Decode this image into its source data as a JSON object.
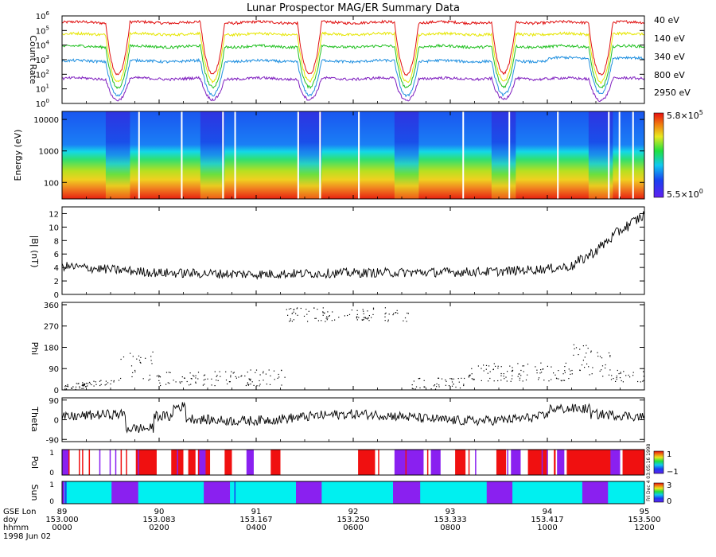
{
  "title": "Lunar Prospector MAG/ER Summary Data",
  "chart_data": [
    {
      "type": "line",
      "name": "count-rate",
      "ylabel": "Count Rate",
      "yscale": "log",
      "ylim": [
        1,
        1000000
      ],
      "yticks": [
        {
          "b": "10",
          "e": "0",
          "v": 1
        },
        {
          "b": "10",
          "e": "1",
          "v": 10
        },
        {
          "b": "10",
          "e": "2",
          "v": 100
        },
        {
          "b": "10",
          "e": "3",
          "v": 1000
        },
        {
          "b": "10",
          "e": "4",
          "v": 10000
        },
        {
          "b": "10",
          "e": "5",
          "v": 100000
        },
        {
          "b": "10",
          "e": "6",
          "v": 1000000
        }
      ],
      "series": [
        {
          "name": "40 eV",
          "color": "#e01010",
          "base_log": 5.55,
          "dip_log": 2.0
        },
        {
          "name": "140 eV",
          "color": "#e6e600",
          "base_log": 4.75,
          "dip_log": 1.5
        },
        {
          "name": "340 eV",
          "color": "#20c020",
          "base_log": 3.9,
          "dip_log": 1.1
        },
        {
          "name": "800 eV",
          "color": "#2090e0",
          "base_log": 2.9,
          "dip_log": 0.55
        },
        {
          "name": "2950 eV",
          "color": "#8020c0",
          "base_log": 1.7,
          "dip_log": 0.25
        }
      ],
      "xrange_hours": [
        0,
        12
      ],
      "night_passes_hours": [
        [
          0.9,
          1.4
        ],
        [
          2.85,
          3.35
        ],
        [
          4.85,
          5.35
        ],
        [
          6.85,
          7.35
        ],
        [
          8.85,
          9.35
        ],
        [
          10.85,
          11.35
        ]
      ]
    },
    {
      "type": "heatmap",
      "name": "energy-spectrogram",
      "ylabel": "Energy (eV)",
      "yscale": "log",
      "ylim": [
        30,
        18000
      ],
      "yticks": [
        {
          "label": "100",
          "v": 100
        },
        {
          "label": "1000",
          "v": 1000
        },
        {
          "label": "10000",
          "v": 10000
        }
      ],
      "colorbar": {
        "max_b": "5.8×10",
        "max_e": "5",
        "min_b": "5.5×10",
        "min_e": "0"
      },
      "data_gaps_hours": [
        1.57,
        2.45,
        3.3,
        3.55,
        4.85,
        5.3,
        6.1,
        8.25,
        9.2,
        10.2,
        11.25,
        11.47,
        11.75
      ]
    },
    {
      "type": "line",
      "name": "b-magnitude",
      "ylabel": "|B| (nT)",
      "ylim": [
        0,
        13
      ],
      "yticks": [
        0,
        2,
        4,
        6,
        8,
        10,
        12
      ],
      "trend_hours": [
        0,
        2,
        4,
        6,
        8,
        9,
        10,
        10.5,
        11,
        11.5,
        12
      ],
      "trend_values": [
        4.2,
        3.2,
        3.0,
        3.2,
        3.3,
        3.4,
        3.8,
        4.2,
        6.5,
        9.5,
        11.8
      ]
    },
    {
      "type": "scatter",
      "name": "phi",
      "ylabel": "Phi",
      "ylim": [
        0,
        370
      ],
      "yticks": [
        0,
        90,
        180,
        270,
        360
      ]
    },
    {
      "type": "line",
      "name": "theta",
      "ylabel": "Theta",
      "ylim": [
        -100,
        100
      ],
      "yticks": [
        -90,
        0,
        90
      ]
    },
    {
      "type": "bar",
      "name": "pol",
      "ylabel": "Pol",
      "colorbar_ticks": [
        "1",
        "−1"
      ],
      "positive_hours": [
        [
          1.52,
          1.95
        ],
        [
          2.25,
          2.5
        ],
        [
          2.6,
          2.75
        ],
        [
          2.9,
          3.05
        ],
        [
          3.35,
          3.5
        ],
        [
          4.3,
          4.5
        ],
        [
          6.1,
          6.45
        ],
        [
          8.1,
          8.3
        ],
        [
          8.95,
          9.15
        ],
        [
          9.6,
          10.0
        ],
        [
          10.4,
          11.45
        ],
        [
          11.55,
          12.0
        ]
      ],
      "negative_hours": [
        [
          0.0,
          0.15
        ],
        [
          2.8,
          2.98
        ],
        [
          3.8,
          3.95
        ],
        [
          6.85,
          7.45
        ],
        [
          7.6,
          7.8
        ],
        [
          9.25,
          9.45
        ],
        [
          10.2,
          10.35
        ],
        [
          11.3,
          11.5
        ]
      ]
    },
    {
      "type": "bar",
      "name": "sun",
      "ylabel": "Sun",
      "colorbar_ticks": [
        "3",
        "0"
      ],
      "shadow_hours": [
        [
          0.0,
          0.05
        ],
        [
          1.02,
          1.57
        ],
        [
          2.92,
          3.46
        ],
        [
          4.82,
          5.35
        ],
        [
          6.82,
          7.38
        ],
        [
          8.75,
          9.28
        ],
        [
          10.72,
          11.25
        ]
      ],
      "small_tick_labels": [
        "0",
        "1",
        "0",
        "1"
      ]
    }
  ],
  "right_labels": [
    "40 eV",
    "140 eV",
    "340 eV",
    "800 eV",
    "2950 eV"
  ],
  "x_axis": {
    "row_labels": [
      "GSE Lon",
      "doy",
      "hhmm"
    ],
    "date": "1998 Jun 02",
    "ticks": [
      {
        "lon": "89",
        "doy": "153.000",
        "hhmm": "0000"
      },
      {
        "lon": "90",
        "doy": "153.083",
        "hhmm": "0200"
      },
      {
        "lon": "91",
        "doy": "153.167",
        "hhmm": "0400"
      },
      {
        "lon": "92",
        "doy": "153.250",
        "hhmm": "0600"
      },
      {
        "lon": "93",
        "doy": "153.333",
        "hhmm": "0800"
      },
      {
        "lon": "94",
        "doy": "153.417",
        "hhmm": "1000"
      },
      {
        "lon": "95",
        "doy": "153.500",
        "hhmm": "1200"
      }
    ]
  },
  "footer_stamp": "Fri Dec 4 03:05:16 1998"
}
